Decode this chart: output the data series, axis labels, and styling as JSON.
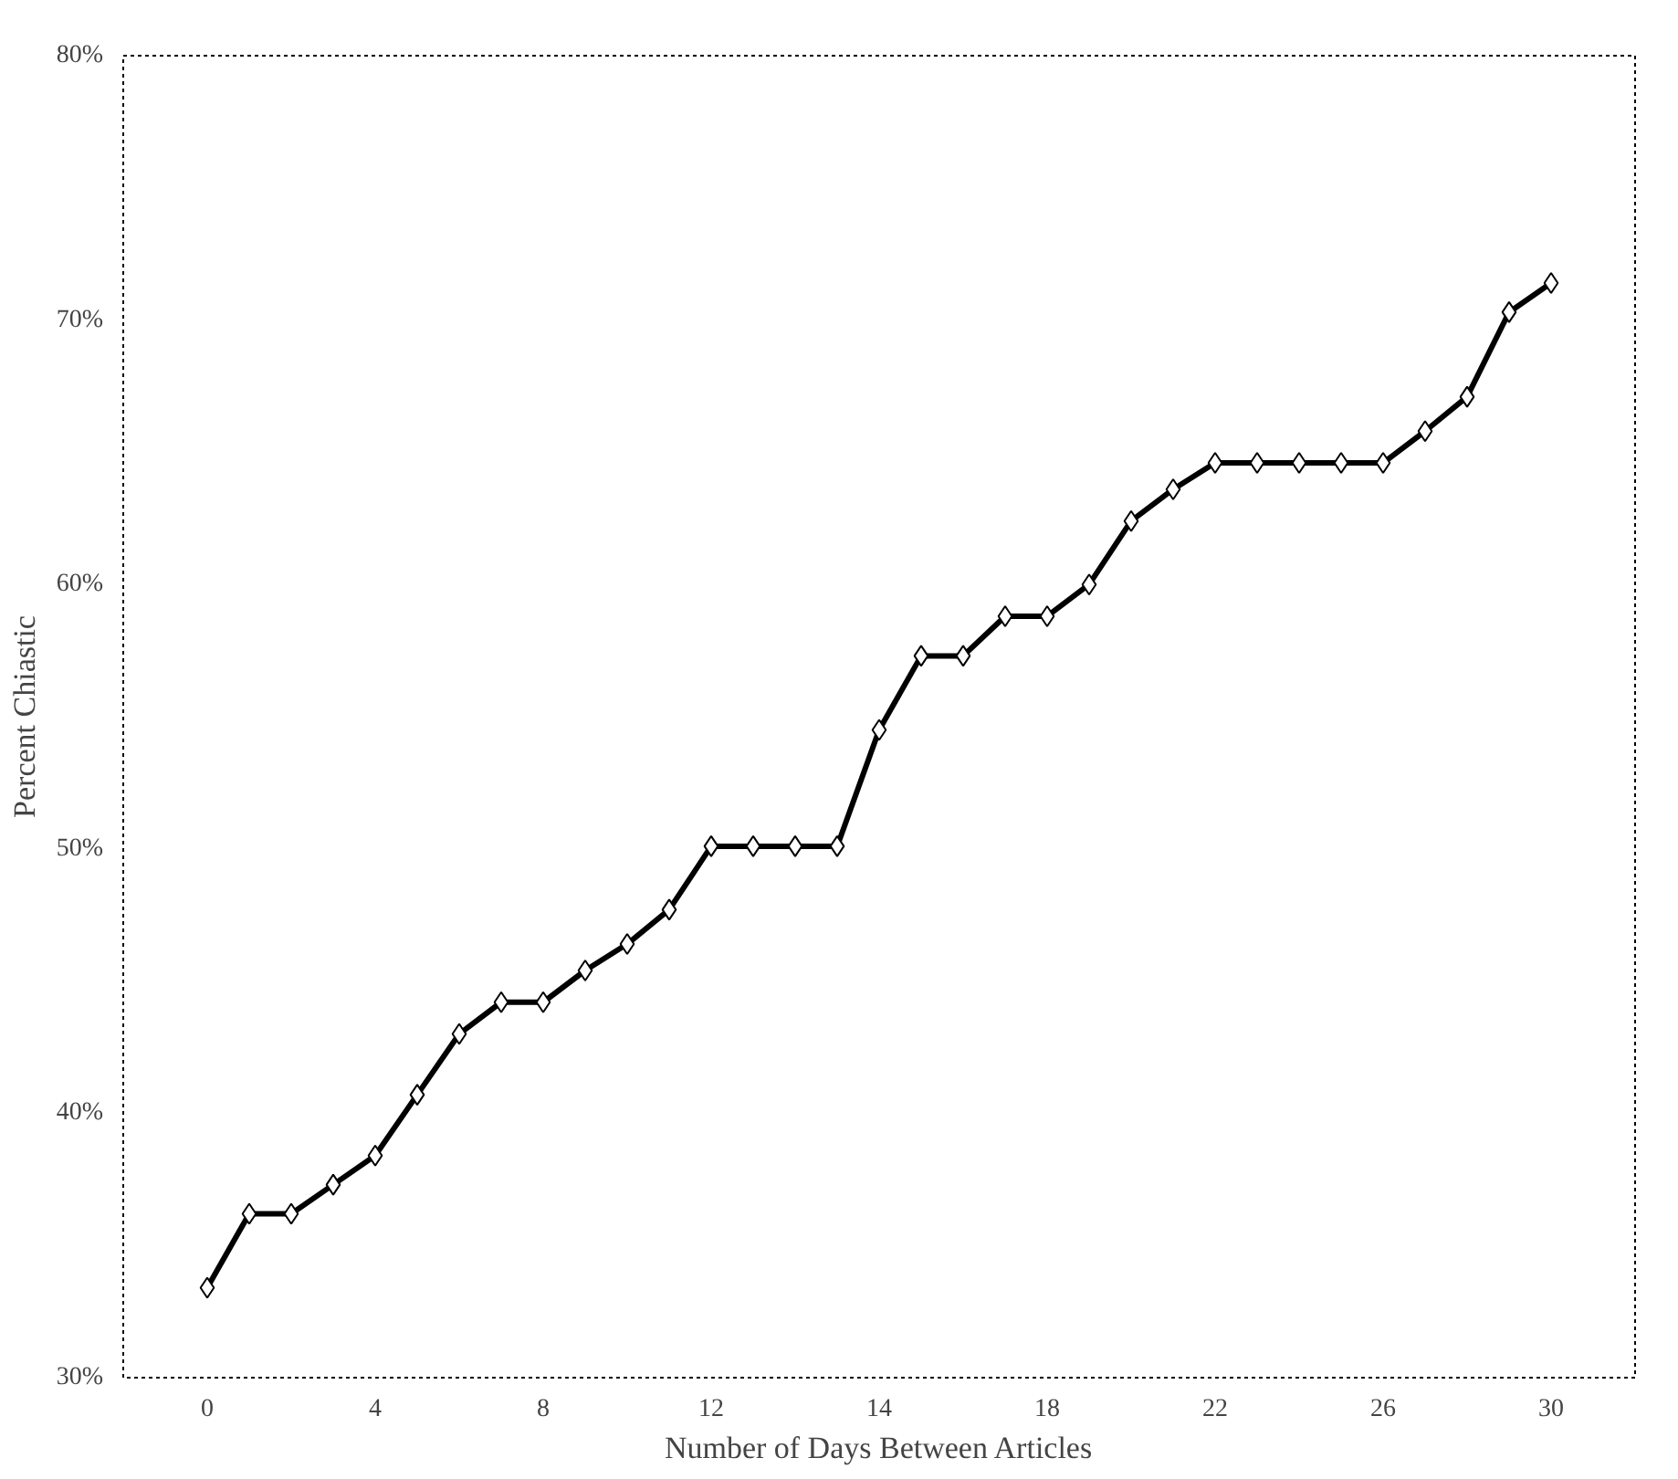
{
  "chart_data": {
    "type": "line",
    "xlabel": "Number of Days Between Articles",
    "ylabel": "Percent Chiastic",
    "categories": [
      "0",
      null,
      null,
      null,
      "4",
      null,
      null,
      null,
      "8",
      null,
      null,
      null,
      "12",
      null,
      null,
      null,
      "14",
      null,
      null,
      null,
      "18",
      null,
      null,
      null,
      "22",
      null,
      null,
      null,
      "26",
      null,
      null,
      null,
      "30"
    ],
    "series": [
      {
        "color": "#000000",
        "values": [
          33.4,
          36.2,
          36.2,
          37.3,
          38.4,
          40.7,
          43.0,
          44.2,
          44.2,
          45.4,
          46.4,
          47.7,
          50.1,
          50.1,
          50.1,
          50.1,
          54.5,
          57.3,
          57.3,
          58.8,
          58.8,
          60.0,
          62.4,
          63.6,
          64.6,
          64.6,
          64.6,
          64.6,
          64.6,
          65.8,
          67.1,
          70.3,
          71.4
        ]
      }
    ],
    "ylim": [
      30,
      80
    ],
    "yticks": [
      {
        "value": 30,
        "label": "30%"
      },
      {
        "value": 40,
        "label": "40%"
      },
      {
        "value": 50,
        "label": "50%"
      },
      {
        "value": 60,
        "label": "60%"
      },
      {
        "value": 70,
        "label": "70%"
      },
      {
        "value": 80,
        "label": "80%"
      }
    ],
    "grid": false,
    "marker": "diamond",
    "line_style": "solid"
  }
}
